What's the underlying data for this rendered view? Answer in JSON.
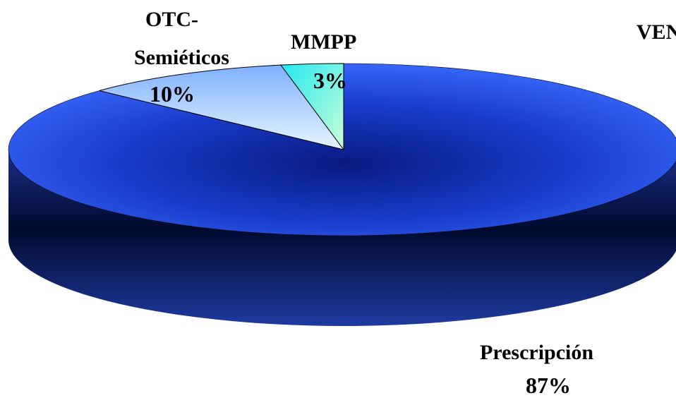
{
  "chart_data": {
    "type": "pie",
    "style": "3d",
    "title": "VEN",
    "slices": [
      {
        "label_line1": "Prescripción",
        "label_line2": "",
        "value": 87,
        "value_label": "87%",
        "color": "#2d56e0"
      },
      {
        "label_line1": "OTC-",
        "label_line2": "Semiéticos",
        "value": 10,
        "value_label": "10%",
        "color": "#cfe6ff"
      },
      {
        "label_line1": "MMPP",
        "label_line2": "",
        "value": 3,
        "value_label": "3%",
        "color": "#ccffe6"
      }
    ]
  }
}
